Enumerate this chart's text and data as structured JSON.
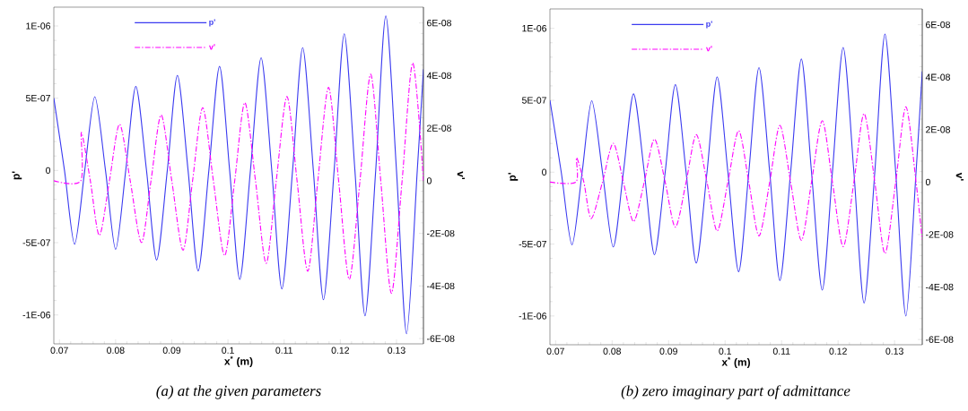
{
  "chart_data": [
    {
      "type": "line",
      "xlabel": "x$^{*}$ (m)",
      "ylabel": "p'",
      "y2label": "v'",
      "annotations": [
        "(a) at the given parameters"
      ],
      "legend": "top",
      "xlim": [
        0.069,
        0.1348
      ],
      "xticks": [
        0.07,
        0.08,
        0.09,
        0.1,
        0.11,
        0.12,
        0.13
      ],
      "ylim": [
        -1.2e-06,
        1.13e-06
      ],
      "yticks": [
        {
          "value": -1e-06,
          "label": "-1E-06"
        },
        {
          "value": -5e-07,
          "label": "-5E-07"
        },
        0,
        {
          "value": 5e-07,
          "label": "5E-07"
        },
        {
          "value": 1e-06,
          "label": "1E-06"
        }
      ],
      "y2lim": [
        -6.2e-08,
        6.6e-08
      ],
      "y2ticks": [
        {
          "value": -6e-08,
          "label": "-6E-08"
        },
        {
          "value": -4e-08,
          "label": "-4E-08"
        },
        {
          "value": -2e-08,
          "label": "-2E-08"
        },
        0,
        {
          "value": 2e-08,
          "label": "2E-08"
        },
        {
          "value": 4e-08,
          "label": "4E-08"
        },
        {
          "value": 6e-08,
          "label": "6E-08"
        }
      ],
      "series": [
        {
          "name": "p'",
          "color": "#3b3bf0",
          "line_style": "solid",
          "x": [
            0.069,
            0.0709,
            0.0727,
            0.0745,
            0.0763,
            0.0782,
            0.08,
            0.0818,
            0.0836,
            0.0855,
            0.0873,
            0.0892,
            0.091,
            0.0929,
            0.0947,
            0.0966,
            0.0985,
            0.1003,
            0.1021,
            0.104,
            0.1059,
            0.1078,
            0.1096,
            0.1115,
            0.1133,
            0.1152,
            0.117,
            0.1189,
            0.1207,
            0.1226,
            0.1244,
            0.1263,
            0.1281,
            0.13,
            0.1318,
            0.1337,
            0.1348
          ],
          "values": [
            5e-07,
            0,
            -5.1e-07,
            0,
            5.1e-07,
            0,
            -5.46e-07,
            0,
            5.82e-07,
            0,
            -6.2e-07,
            0,
            6.57e-07,
            0,
            -6.96e-07,
            0,
            7.2e-07,
            0,
            -7.54e-07,
            0,
            7.8e-07,
            0,
            -8.2e-07,
            0,
            8.5e-07,
            0,
            -8.95e-07,
            0,
            9.46e-07,
            0,
            -1.006e-06,
            0,
            1.07e-06,
            0,
            -1.13e-06,
            0,
            7e-07
          ]
        },
        {
          "name": "v'",
          "color": "#ff00ff",
          "line_style": "dashdot",
          "axis": "y2",
          "x": [
            0.069,
            0.0738,
            0.0739,
            0.0755,
            0.0771,
            0.0789,
            0.0807,
            0.0826,
            0.0846,
            0.0863,
            0.0881,
            0.09,
            0.092,
            0.0937,
            0.0955,
            0.0974,
            0.0994,
            0.1012,
            0.103,
            0.1049,
            0.1068,
            0.1086,
            0.1105,
            0.1123,
            0.1142,
            0.116,
            0.1179,
            0.1197,
            0.1216,
            0.1235,
            0.1254,
            0.1272,
            0.1291,
            0.131,
            0.1329,
            0.1348
          ],
          "values": [
            0,
            0,
            1.84e-08,
            0,
            -2.08e-08,
            0,
            2.15e-08,
            0,
            -2.35e-08,
            0,
            2.5e-08,
            0,
            -2.64e-08,
            0,
            2.78e-08,
            0,
            -2.85e-08,
            0,
            2.97e-08,
            0,
            -3.14e-08,
            0,
            3.2e-08,
            0,
            -3.44e-08,
            0,
            3.55e-08,
            0,
            -3.75e-08,
            0,
            4.05e-08,
            0,
            -4.28e-08,
            0,
            4.48e-08,
            0
          ]
        }
      ]
    },
    {
      "type": "line",
      "xlabel": "x$^{*}$ (m)",
      "ylabel": "p'",
      "y2label": "v'",
      "annotations": [
        "(b) zero imaginary part of admittance"
      ],
      "legend": "top",
      "xlim": [
        0.069,
        0.1349
      ],
      "xticks": [
        0.07,
        0.08,
        0.09,
        0.1,
        0.11,
        0.12,
        0.13
      ],
      "ylim": [
        -1.2e-06,
        1.135e-06
      ],
      "yticks": [
        {
          "value": -1e-06,
          "label": "-1E-06"
        },
        {
          "value": -5e-07,
          "label": "-5E-07"
        },
        0,
        {
          "value": 5e-07,
          "label": "5E-07"
        },
        {
          "value": 1e-06,
          "label": "1E-06"
        }
      ],
      "y2lim": [
        -6.2e-08,
        6.6e-08
      ],
      "y2ticks": [
        {
          "value": -6e-08,
          "label": "-6E-08"
        },
        {
          "value": -4e-08,
          "label": "-4E-08"
        },
        {
          "value": -2e-08,
          "label": "-2E-08"
        },
        0,
        {
          "value": 2e-08,
          "label": "2E-08"
        },
        {
          "value": 4e-08,
          "label": "4E-08"
        },
        {
          "value": 6e-08,
          "label": "6E-08"
        }
      ],
      "series": [
        {
          "name": "p'",
          "color": "#3b3bf0",
          "line_style": "solid",
          "x": [
            0.069,
            0.071,
            0.0729,
            0.0747,
            0.0764,
            0.0783,
            0.0802,
            0.082,
            0.0838,
            0.0857,
            0.0875,
            0.0894,
            0.0912,
            0.0931,
            0.0949,
            0.0968,
            0.0986,
            0.1005,
            0.1024,
            0.1042,
            0.106,
            0.1079,
            0.1097,
            0.1116,
            0.1135,
            0.1153,
            0.1172,
            0.119,
            0.1209,
            0.1228,
            0.1246,
            0.1265,
            0.1283,
            0.1302,
            0.132,
            0.1338,
            0.1349
          ],
          "values": [
            5e-07,
            0,
            -5.05e-07,
            0,
            4.97e-07,
            0,
            -5.2e-07,
            0,
            5.44e-07,
            0,
            -5.74e-07,
            0,
            6.09e-07,
            0,
            -6.32e-07,
            0,
            6.62e-07,
            0,
            -6.92e-07,
            0,
            7.27e-07,
            0,
            -7.53e-07,
            0,
            7.87e-07,
            0,
            -8.2e-07,
            0,
            8.67e-07,
            0,
            -9.1e-07,
            0,
            9.6e-07,
            0,
            -1e-06,
            0,
            7e-07
          ]
        },
        {
          "name": "v'",
          "color": "#ff00ff",
          "line_style": "dashdot",
          "axis": "y2",
          "x": [
            0.069,
            0.0736,
            0.0737,
            0.075,
            0.0763,
            0.0783,
            0.0802,
            0.082,
            0.0838,
            0.0857,
            0.0875,
            0.0894,
            0.0912,
            0.0931,
            0.0949,
            0.0968,
            0.0986,
            0.1005,
            0.1024,
            0.1042,
            0.106,
            0.1079,
            0.1097,
            0.1116,
            0.1135,
            0.1153,
            0.1172,
            0.119,
            0.1209,
            0.1228,
            0.1246,
            0.1265,
            0.1283,
            0.1302,
            0.132,
            0.1338,
            0.1349
          ],
          "values": [
            0,
            0,
            9.3e-09,
            0,
            -1.39e-08,
            0,
            1.48e-08,
            0,
            -1.5e-08,
            0,
            1.64e-08,
            0,
            -1.72e-08,
            0,
            1.81e-08,
            0,
            -1.86e-08,
            0,
            1.96e-08,
            0,
            -2.05e-08,
            0,
            2.16e-08,
            0,
            -2.22e-08,
            0,
            2.34e-08,
            0,
            -2.46e-08,
            0,
            2.61e-08,
            0,
            -2.72e-08,
            0,
            2.87e-08,
            0,
            -2.2e-08
          ]
        }
      ]
    }
  ]
}
